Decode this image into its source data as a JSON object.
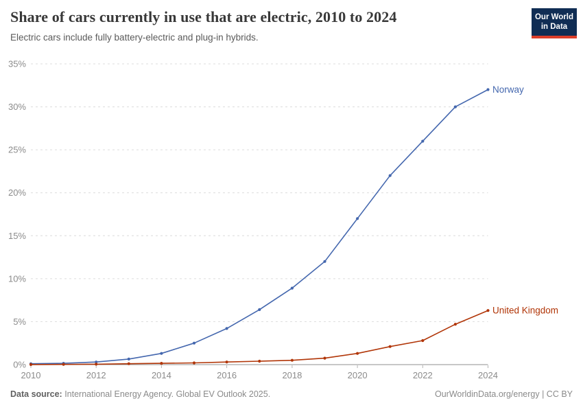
{
  "header": {
    "title": "Share of cars currently in use that are electric, 2010 to 2024",
    "subtitle": "Electric cars include fully battery-electric and plug-in hybrids.",
    "logo": {
      "line1": "Our World",
      "line2": "in Data"
    }
  },
  "chart_data": {
    "type": "line",
    "title": "Share of cars currently in use that are electric, 2010 to 2024",
    "x": [
      2010,
      2011,
      2012,
      2013,
      2014,
      2015,
      2016,
      2017,
      2018,
      2019,
      2020,
      2021,
      2022,
      2023,
      2024
    ],
    "series": [
      {
        "name": "Norway",
        "color": "#4467ae",
        "values": [
          0.1,
          0.15,
          0.3,
          0.65,
          1.3,
          2.5,
          4.2,
          6.4,
          8.9,
          12,
          17,
          22,
          26,
          30,
          32
        ]
      },
      {
        "name": "United Kingdom",
        "color": "#b13507",
        "values": [
          0.01,
          0.02,
          0.05,
          0.1,
          0.15,
          0.2,
          0.3,
          0.4,
          0.5,
          0.75,
          1.3,
          2.1,
          2.8,
          4.7,
          6.3
        ]
      }
    ],
    "xlim": [
      2010,
      2024
    ],
    "ylim": [
      0,
      35
    ],
    "xticks": [
      2010,
      2012,
      2014,
      2016,
      2018,
      2020,
      2022,
      2024
    ],
    "yticks": [
      0,
      5,
      10,
      15,
      20,
      25,
      30,
      35
    ],
    "ytick_suffix": "%",
    "grid": "horizontal-dashed",
    "legend_position": "line-end-labels"
  },
  "footer": {
    "source_label": "Data source:",
    "source_text": " International Energy Agency. Global EV Outlook 2025.",
    "credit": "OurWorldinData.org/energy | CC BY"
  },
  "colors": {
    "norway_line": "#4467ae",
    "uk_line": "#b13507",
    "logo_background": "#102d54",
    "logo_bar": "#dc3e2a",
    "axis_text": "#8b8b8b",
    "gridline": "#dcdcdc",
    "axis_line": "#8f8f8f"
  }
}
